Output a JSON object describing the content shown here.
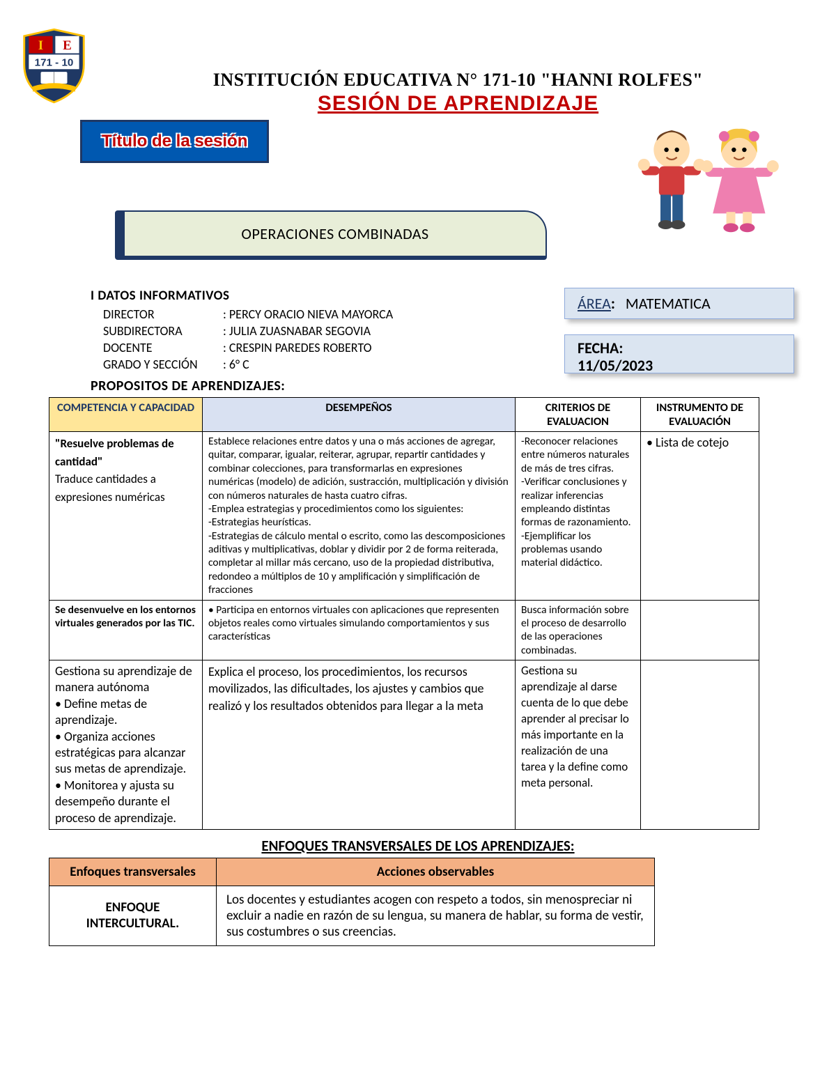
{
  "shield": {
    "top_left_letter": "I",
    "top_right_letter": "E",
    "number": "171 - 10",
    "banner": "HANNI ROLFES",
    "colors": {
      "red": "#c00000",
      "blue": "#1f3864",
      "gold": "#ffc000",
      "white": "#ffffff"
    }
  },
  "header": {
    "institution": "INSTITUCIÓN EDUCATIVA N° 171-10 \"HANNI ROLFES\"",
    "session_title": "SESIÓN DE APRENDIZAJE",
    "title_chip": "Título de la sesión",
    "topic": "OPERACIONES COMBINADAS"
  },
  "info": {
    "section_label": "I   DATOS INFORMATIVOS",
    "rows": [
      {
        "label": "DIRECTOR",
        "value": ": PERCY ORACIO NIEVA MAYORCA"
      },
      {
        "label": "SUBDIRECTORA",
        "value": ": JULIA ZUASNABAR SEGOVIA"
      },
      {
        "label": "DOCENTE",
        "value": ":  CRESPIN PAREDES ROBERTO"
      },
      {
        "label": "GRADO Y SECCIÓN",
        "value": ":   6° C"
      }
    ],
    "area_label": "ÁREA",
    "area_value": "MATEMATICA",
    "fecha_label": "FECHA:",
    "fecha_value": "11/05/2023"
  },
  "propositos": {
    "heading": "PROPOSITOS DE APRENDIZAJES:",
    "headers": {
      "competencia": "COMPETENCIA Y CAPACIDAD",
      "desempenos": "DESEMPEÑOS",
      "criterios": "CRITERIOS DE EVALUACION",
      "instrumento": "INSTRUMENTO DE EVALUACIÓN"
    },
    "rows": [
      {
        "competencia": "\"Resuelve problemas de cantidad\"\nTraduce cantidades a expresiones numéricas",
        "competencia_bold_prefix": "\"Resuelve problemas de cantidad\"",
        "competencia_rest": "Traduce cantidades a expresiones numéricas",
        "desempenos": "Establece relaciones entre datos y una o más acciones de agregar, quitar, comparar, igualar, reiterar, agrupar, repartir cantidades y combinar colecciones, para transformarlas en expresiones numéricas (modelo) de adición, sustracción, multiplicación y división con números naturales de hasta cuatro cifras.\n-Emplea estrategias y procedimientos como los siguientes:\n-Estrategias heurísticas.\n-Estrategias de cálculo mental o escrito, como las descomposiciones aditivas y multiplicativas, doblar y dividir por 2 de forma reiterada, completar al millar más cercano, uso de la propiedad distributiva, redondeo a múltiplos de 10 y amplificación y simplificación de fracciones",
        "criterios": "-Reconocer relaciones entre números naturales de más de tres cifras.\n -Verificar conclusiones y realizar inferencias empleando distintas formas de razonamiento.\n-Ejemplificar los problemas usando material didáctico.",
        "instrumento": "• Lista de cotejo"
      },
      {
        "competencia_bold_prefix": "Se desenvuelve en los entornos virtuales generados por las TIC.",
        "competencia_rest": "",
        "desempenos": "• Participa en entornos virtuales con aplicaciones que representen objetos reales como virtuales simulando comportamientos y sus características",
        "criterios": "Busca información sobre el proceso de desarrollo de las operaciones combinadas.",
        "instrumento": ""
      },
      {
        "competencia_bold_prefix": "",
        "competencia_rest": "Gestiona su aprendizaje de manera autónoma\n• Define metas de aprendizaje.\n• Organiza acciones estratégicas para alcanzar sus metas de aprendizaje.\n• Monitorea y ajusta su desempeño durante el proceso de aprendizaje.",
        "desempenos": "Explica el proceso, los procedimientos, los recursos movilizados, las dificultades, los ajustes y cambios que realizó y los resultados obtenidos para llegar a la meta",
        "criterios": "Gestiona su aprendizaje al darse cuenta de lo que debe aprender al precisar lo más importante en la realización de una tarea y la define como meta personal.",
        "instrumento": ""
      }
    ]
  },
  "enfoques": {
    "heading": "ENFOQUES TRANSVERSALES DE LOS APRENDIZAJES:",
    "headers": {
      "left": "Enfoques transversales",
      "right": "Acciones observables"
    },
    "row": {
      "left": "ENFOQUE INTERCULTURAL.",
      "right": "Los docentes y estudiantes acogen con respeto a todos, sin menospreciar ni excluir a nadie en razón de su lengua, su manera de hablar, su forma de vestir, sus costumbres o sus creencias."
    }
  },
  "style": {
    "colors": {
      "chip_bg": "#0058b0",
      "chip_border": "#1f3864",
      "chip_text": "#c00000",
      "topic_bg": "#e8eed8",
      "pill_bg": "#dbe5f1",
      "th_comp_bg": "#ffe699",
      "th_des_bg": "#d9e1f2",
      "enf_header_bg": "#f4b084"
    }
  }
}
